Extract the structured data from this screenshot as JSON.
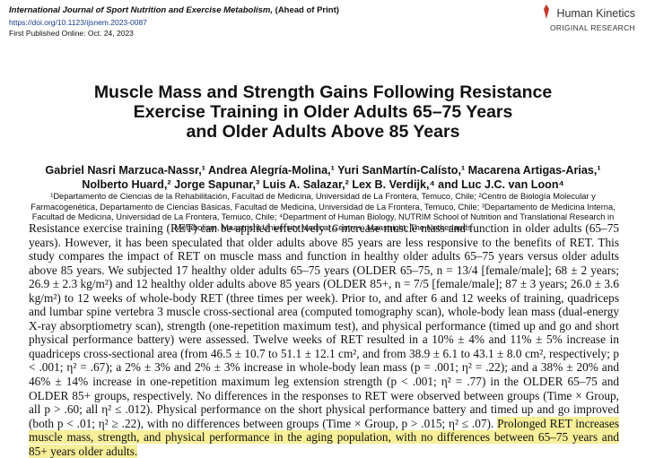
{
  "header": {
    "journal": "International Journal of Sport Nutrition and Exercise Metabolism,",
    "status": "(Ahead of Print)",
    "doi": "https://doi.org/10.1123/ijsnem.2023-0087",
    "published": "First Published Online: Oct. 24, 2023",
    "publisher": "Human Kinetics",
    "section": "ORIGINAL RESEARCH"
  },
  "title": [
    "Muscle Mass and Strength Gains Following Resistance",
    "Exercise Training in Older Adults 65–75 Years",
    "and Older Adults Above 85 Years"
  ],
  "authors": [
    "Gabriel Nasri Marzuca-Nassr,¹ Andrea Alegría-Molina,¹ Yuri SanMartín-Calísto,¹ Macarena Artigas-Arias,¹",
    "Nolberto Huard,² Jorge Sapunar,³ Luis A. Salazar,² Lex B. Verdijk,⁴ and Luc J.C. van Loon⁴"
  ],
  "affiliations": "¹Departamento de Ciencias de la Rehabilitación, Facultad de Medicina, Universidad de La Frontera, Temuco, Chile; ²Centro de Biología Molecular y Farmacogenética, Departamento de Ciencias Básicas, Facultad de Medicina, Universidad de La Frontera, Temuco, Chile; ³Departamento de Medicina Interna, Facultad de Medicina, Universidad de La Frontera, Temuco, Chile; ⁴Department of Human Biology, NUTRIM School of Nutrition and Translational Research in Metabolism, Maastricht University Medical Centre+, Maastricht, The Netherlands",
  "abstract": {
    "body": "Resistance exercise training (RET) can be applied effectively to increase muscle mass and function in older adults (65–75 years). However, it has been speculated that older adults above 85 years are less responsive to the benefits of RET. This study compares the impact of RET on muscle mass and function in healthy older adults 65–75 years versus older adults above 85 years. We subjected 17 healthy older adults 65–75 years (OLDER 65–75, n = 13/4 [female/male]; 68 ± 2 years; 26.9 ± 2.3 kg/m²) and 12 healthy older adults above 85 years (OLDER 85+, n = 7/5 [female/male]; 87 ± 3 years; 26.0 ± 3.6 kg/m²) to 12 weeks of whole-body RET (three times per week). Prior to, and after 6 and 12 weeks of training, quadriceps and lumbar spine vertebra 3 muscle cross-sectional area (computed tomography scan), whole-body lean mass (dual-energy X-ray absorptiometry scan), strength (one-repetition maximum test), and physical performance (timed up and go and short physical performance battery) were assessed. Twelve weeks of RET resulted in a 10% ± 4% and 11% ± 5% increase in quadriceps cross-sectional area (from 46.5 ± 10.7 to 51.1 ± 12.1 cm², and from 38.9 ± 6.1 to 43.1 ± 8.0 cm², respectively; p < .001; η² = .67); a 2% ± 3% and 2% ± 3% increase in whole-body lean mass (p = .001; η² = .22); and a 38% ± 20% and 46% ± 14% increase in one-repetition maximum leg extension strength (p < .001; η² = .77) in the OLDER 65–75 and OLDER 85+ groups, respectively. No differences in the responses to RET were observed between groups (Time × Group, all p > .60; all η² ≤ .012). Physical performance on the short physical performance battery and timed up and go improved (both p < .01; η² ≥ .22), with no differences between groups (Time × Group, p > .015; η² ≤ .07).",
    "conclusion": "Prolonged RET increases muscle mass, strength, and physical performance in the aging population, with no differences between 65–75 years and 85+ years older adults."
  }
}
